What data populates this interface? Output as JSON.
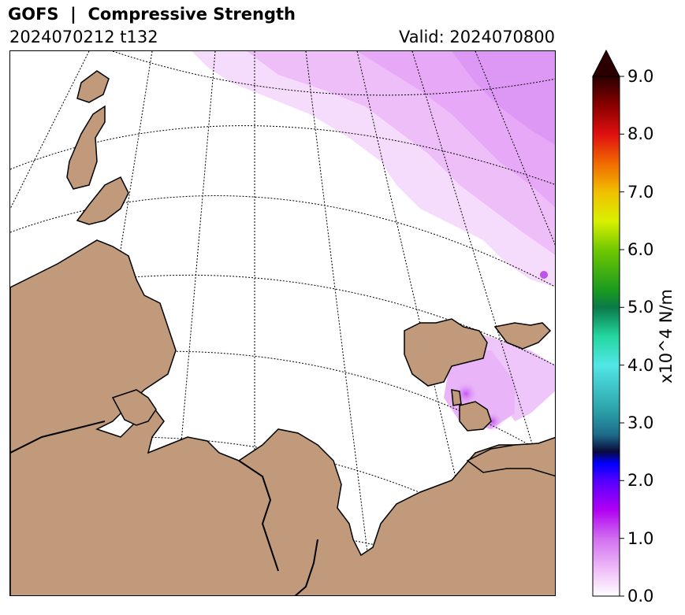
{
  "header": {
    "title": "GOFS  |  Compressive Strength",
    "run_info": "2024070212 t132",
    "valid": "Valid: 2024070800"
  },
  "colorbar": {
    "label": "x10^4 N/m",
    "min": 0.0,
    "max": 9.0,
    "extend": "max",
    "ticks": [
      "0.0",
      "1.0",
      "2.0",
      "3.0",
      "4.0",
      "5.0",
      "6.0",
      "7.0",
      "8.0",
      "9.0"
    ],
    "color_stops": [
      {
        "value": 0.0,
        "color": "#ffffff"
      },
      {
        "value": 0.5,
        "color": "#eeb8f7"
      },
      {
        "value": 1.0,
        "color": "#d16ff0"
      },
      {
        "value": 1.5,
        "color": "#b100f3"
      },
      {
        "value": 2.0,
        "color": "#5500ff"
      },
      {
        "value": 2.3,
        "color": "#0000ff"
      },
      {
        "value": 2.5,
        "color": "#0a0a3a"
      },
      {
        "value": 2.8,
        "color": "#1e6b8a"
      },
      {
        "value": 3.2,
        "color": "#2aa0a8"
      },
      {
        "value": 4.0,
        "color": "#52e6e6"
      },
      {
        "value": 4.5,
        "color": "#24d6a0"
      },
      {
        "value": 5.0,
        "color": "#0a7a4a"
      },
      {
        "value": 5.3,
        "color": "#1a9a20"
      },
      {
        "value": 6.0,
        "color": "#70c800"
      },
      {
        "value": 6.5,
        "color": "#d9f000"
      },
      {
        "value": 7.0,
        "color": "#f0c000"
      },
      {
        "value": 7.5,
        "color": "#f06a00"
      },
      {
        "value": 8.0,
        "color": "#e01010"
      },
      {
        "value": 8.5,
        "color": "#8a0000"
      },
      {
        "value": 9.0,
        "color": "#2a0000"
      }
    ]
  },
  "map": {
    "land_color": "#c09a7a",
    "ocean_color": "#ffffff",
    "ice_color": "#e9b0f7",
    "coastline_color": "#000000",
    "graticule": "dotted meridians and parallels"
  }
}
